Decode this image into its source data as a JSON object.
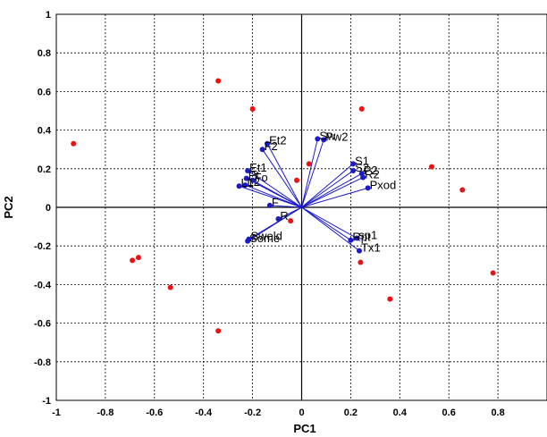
{
  "chart_data": {
    "type": "scatter",
    "subtype": "pca-biplot",
    "title": "",
    "xlabel": "PC1",
    "ylabel": "PC2",
    "xlim": [
      -1,
      1
    ],
    "ylim": [
      -1,
      1
    ],
    "x_ticks": [
      "-1",
      "-0.8",
      "-0.6",
      "-0.4",
      "-0.2",
      "0",
      "0.2",
      "0.4",
      "0.6",
      "0.8"
    ],
    "y_ticks": [
      "1",
      "0.8",
      "0.6",
      "0.4",
      "0.2",
      "0",
      "-0.2",
      "-0.4",
      "-0.6",
      "-0.8",
      "-1"
    ],
    "grid": true,
    "colors": {
      "scores": "#ee1111",
      "loadings": "#1a1acc",
      "vectors": "#1a1acc"
    },
    "observations": [
      {
        "x": -0.93,
        "y": 0.33
      },
      {
        "x": -0.34,
        "y": 0.655
      },
      {
        "x": -0.2,
        "y": 0.51
      },
      {
        "x": 0.245,
        "y": 0.51
      },
      {
        "x": 0.53,
        "y": 0.21
      },
      {
        "x": 0.655,
        "y": 0.09
      },
      {
        "x": 0.78,
        "y": -0.34
      },
      {
        "x": 0.36,
        "y": -0.475
      },
      {
        "x": 0.24,
        "y": -0.285
      },
      {
        "x": -0.69,
        "y": -0.275
      },
      {
        "x": -0.665,
        "y": -0.26
      },
      {
        "x": -0.535,
        "y": -0.415
      },
      {
        "x": -0.34,
        "y": -0.64
      },
      {
        "x": 0.03,
        "y": 0.225
      },
      {
        "x": -0.02,
        "y": 0.14
      },
      {
        "x": -0.045,
        "y": -0.07
      }
    ],
    "loadings": [
      {
        "label": "Et2",
        "x": -0.14,
        "y": 0.33
      },
      {
        "label": "F2",
        "x": -0.16,
        "y": 0.3
      },
      {
        "label": "Sw",
        "x": 0.065,
        "y": 0.355
      },
      {
        "label": "Pw2",
        "x": 0.09,
        "y": 0.35
      },
      {
        "label": "S1",
        "x": 0.21,
        "y": 0.225
      },
      {
        "label": "S2",
        "x": 0.21,
        "y": 0.19
      },
      {
        "label": "P2",
        "x": 0.245,
        "y": 0.175
      },
      {
        "label": "R2",
        "x": 0.25,
        "y": 0.155
      },
      {
        "label": "Pxod",
        "x": 0.27,
        "y": 0.1
      },
      {
        "label": "Et1",
        "x": -0.22,
        "y": 0.19
      },
      {
        "label": "Fo",
        "x": -0.2,
        "y": 0.14
      },
      {
        "label": "Pt",
        "x": -0.225,
        "y": 0.15
      },
      {
        "label": "L1",
        "x": -0.255,
        "y": 0.11
      },
      {
        "label": "L2",
        "x": -0.23,
        "y": 0.115
      },
      {
        "label": "F",
        "x": -0.13,
        "y": 0.01
      },
      {
        "label": "R",
        "x": -0.095,
        "y": -0.06
      },
      {
        "label": "Some",
        "x": -0.22,
        "y": -0.175
      },
      {
        "label": "Sweld",
        "x": -0.215,
        "y": -0.165
      },
      {
        "label": "Rpt",
        "x": 0.2,
        "y": -0.17
      },
      {
        "label": "sp1",
        "x": 0.225,
        "y": -0.16
      },
      {
        "label": "Tx1",
        "x": 0.235,
        "y": -0.225
      }
    ]
  }
}
